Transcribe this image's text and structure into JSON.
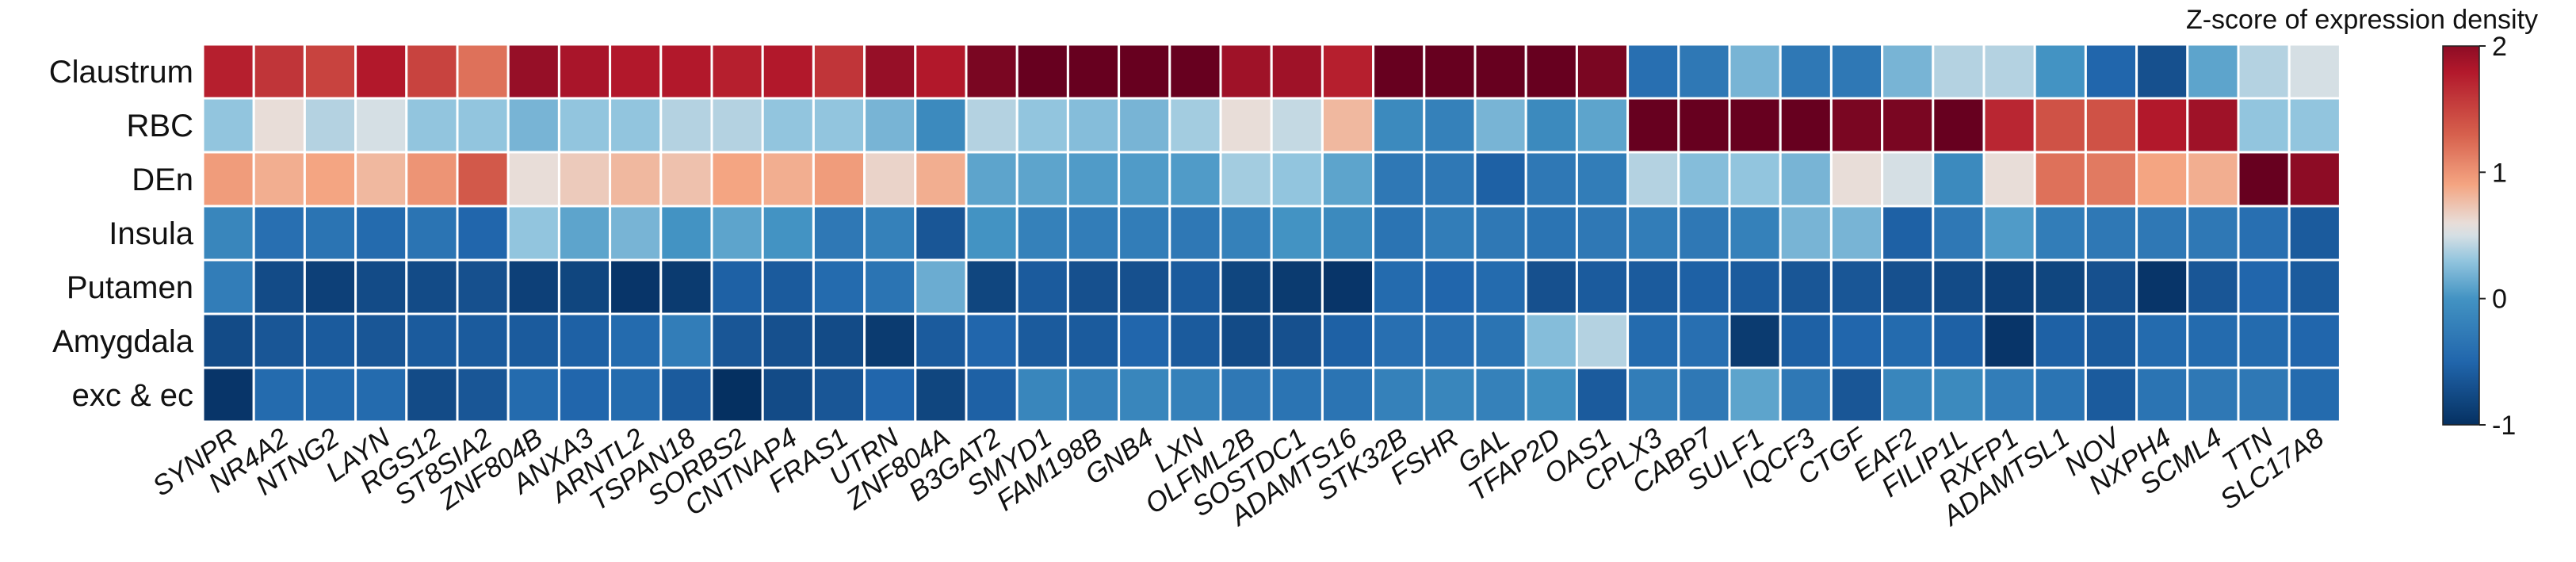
{
  "chart_data": {
    "type": "heatmap",
    "rows": [
      "Claustrum",
      "RBC",
      "DEn",
      "Insula",
      "Putamen",
      "Amygdala",
      "exc & ec"
    ],
    "columns": [
      "SYNPR",
      "NR4A2",
      "NTNG2",
      "LAYN",
      "RGS12",
      "ST8SIA2",
      "ZNF804B",
      "ANXA3",
      "ARNTL2",
      "TSPAN18",
      "SORBS2",
      "CNTNAP4",
      "FRAS1",
      "UTRN",
      "ZNF804A",
      "B3GAT2",
      "SMYD1",
      "FAM198B",
      "GNB4",
      "LXN",
      "OLFML2B",
      "SOSTDC1",
      "ADAMTS16",
      "STK32B",
      "FSHR",
      "GAL",
      "TFAP2D",
      "OAS1",
      "CPLX3",
      "CABP7",
      "SULF1",
      "IQCF3",
      "CTGF",
      "EAF2",
      "FILIP1L",
      "RXFP1",
      "ADAMTSL1",
      "NOV",
      "NXPH4",
      "SCML4",
      "TTN",
      "SLC17A8"
    ],
    "values": [
      [
        1.75,
        1.6,
        1.5,
        1.8,
        1.5,
        1.2,
        1.95,
        1.85,
        1.8,
        1.8,
        1.75,
        1.8,
        1.6,
        1.95,
        1.8,
        2.1,
        2.2,
        2.2,
        2.3,
        2.2,
        1.9,
        1.9,
        1.75,
        2.4,
        2.4,
        2.4,
        2.3,
        2.1,
        -0.4,
        -0.3,
        0.2,
        -0.3,
        -0.3,
        0.2,
        0.4,
        0.4,
        0.0,
        -0.5,
        -0.7,
        0.1,
        0.4,
        0.5
      ],
      [
        0.3,
        0.6,
        0.4,
        0.5,
        0.3,
        0.3,
        0.2,
        0.3,
        0.3,
        0.4,
        0.4,
        0.3,
        0.3,
        0.2,
        -0.1,
        0.4,
        0.3,
        0.25,
        0.2,
        0.35,
        0.6,
        0.45,
        0.8,
        -0.1,
        -0.2,
        0.2,
        -0.1,
        0.1,
        2.3,
        2.4,
        2.2,
        2.3,
        2.1,
        2.1,
        2.3,
        1.7,
        1.4,
        1.4,
        1.8,
        1.9,
        0.3,
        0.3
      ],
      [
        0.95,
        0.85,
        0.9,
        0.8,
        1.0,
        1.35,
        0.6,
        0.7,
        0.8,
        0.75,
        0.9,
        0.85,
        0.95,
        0.65,
        0.85,
        0.1,
        0.1,
        0.05,
        0.05,
        0.05,
        0.35,
        0.3,
        0.1,
        -0.3,
        -0.3,
        -0.55,
        -0.3,
        -0.25,
        0.4,
        0.25,
        0.3,
        0.2,
        0.6,
        0.5,
        -0.1,
        0.6,
        1.2,
        1.15,
        0.9,
        0.85,
        2.3,
        2.0
      ],
      [
        -0.15,
        -0.4,
        -0.35,
        -0.45,
        -0.35,
        -0.5,
        0.3,
        0.1,
        0.2,
        0.0,
        0.1,
        0.0,
        -0.3,
        -0.2,
        -0.65,
        0.0,
        -0.2,
        -0.25,
        -0.25,
        -0.3,
        -0.2,
        0.0,
        -0.1,
        -0.35,
        -0.25,
        -0.3,
        -0.35,
        -0.3,
        -0.25,
        -0.3,
        -0.2,
        0.2,
        0.2,
        -0.55,
        -0.3,
        0.05,
        -0.25,
        -0.3,
        -0.3,
        -0.3,
        -0.4,
        -0.6
      ],
      [
        -0.25,
        -0.75,
        -0.85,
        -0.75,
        -0.75,
        -0.7,
        -0.85,
        -0.8,
        -0.95,
        -0.9,
        -0.55,
        -0.6,
        -0.45,
        -0.35,
        0.15,
        -0.8,
        -0.6,
        -0.7,
        -0.7,
        -0.6,
        -0.8,
        -0.9,
        -0.95,
        -0.45,
        -0.5,
        -0.45,
        -0.7,
        -0.6,
        -0.6,
        -0.55,
        -0.6,
        -0.65,
        -0.65,
        -0.7,
        -0.75,
        -0.85,
        -0.8,
        -0.7,
        -0.95,
        -0.65,
        -0.5,
        -0.6
      ],
      [
        -0.75,
        -0.65,
        -0.6,
        -0.65,
        -0.6,
        -0.6,
        -0.6,
        -0.55,
        -0.45,
        -0.25,
        -0.65,
        -0.7,
        -0.75,
        -0.9,
        -0.6,
        -0.5,
        -0.6,
        -0.6,
        -0.5,
        -0.6,
        -0.75,
        -0.7,
        -0.55,
        -0.4,
        -0.4,
        -0.35,
        0.25,
        0.4,
        -0.45,
        -0.4,
        -0.9,
        -0.55,
        -0.5,
        -0.45,
        -0.55,
        -0.95,
        -0.55,
        -0.6,
        -0.45,
        -0.45,
        -0.45,
        -0.5
      ],
      [
        -0.95,
        -0.45,
        -0.45,
        -0.45,
        -0.75,
        -0.65,
        -0.45,
        -0.5,
        -0.45,
        -0.6,
        -1.0,
        -0.75,
        -0.65,
        -0.5,
        -0.8,
        -0.55,
        -0.15,
        -0.2,
        -0.15,
        -0.2,
        -0.3,
        -0.35,
        -0.35,
        -0.2,
        -0.15,
        -0.2,
        -0.05,
        -0.6,
        -0.25,
        -0.3,
        0.1,
        -0.3,
        -0.65,
        -0.15,
        -0.1,
        -0.25,
        -0.35,
        -0.6,
        -0.35,
        -0.3,
        -0.3,
        -0.45
      ]
    ],
    "color_scale": {
      "min": -1,
      "max": 2,
      "stops": [
        {
          "v": -1.0,
          "c": "#053061"
        },
        {
          "v": -0.5,
          "c": "#2166ac"
        },
        {
          "v": 0.0,
          "c": "#4393c3"
        },
        {
          "v": 0.3,
          "c": "#92c5de"
        },
        {
          "v": 0.55,
          "c": "#e6e6e6"
        },
        {
          "v": 0.9,
          "c": "#f4a582"
        },
        {
          "v": 1.3,
          "c": "#d6604d"
        },
        {
          "v": 1.8,
          "c": "#b2182b"
        },
        {
          "v": 2.2,
          "c": "#67001f"
        }
      ]
    },
    "colorbar": {
      "title": "Z-score of expression density",
      "ticks": [
        2,
        1,
        0,
        -1
      ]
    },
    "grid": true,
    "legend_position": "right"
  }
}
